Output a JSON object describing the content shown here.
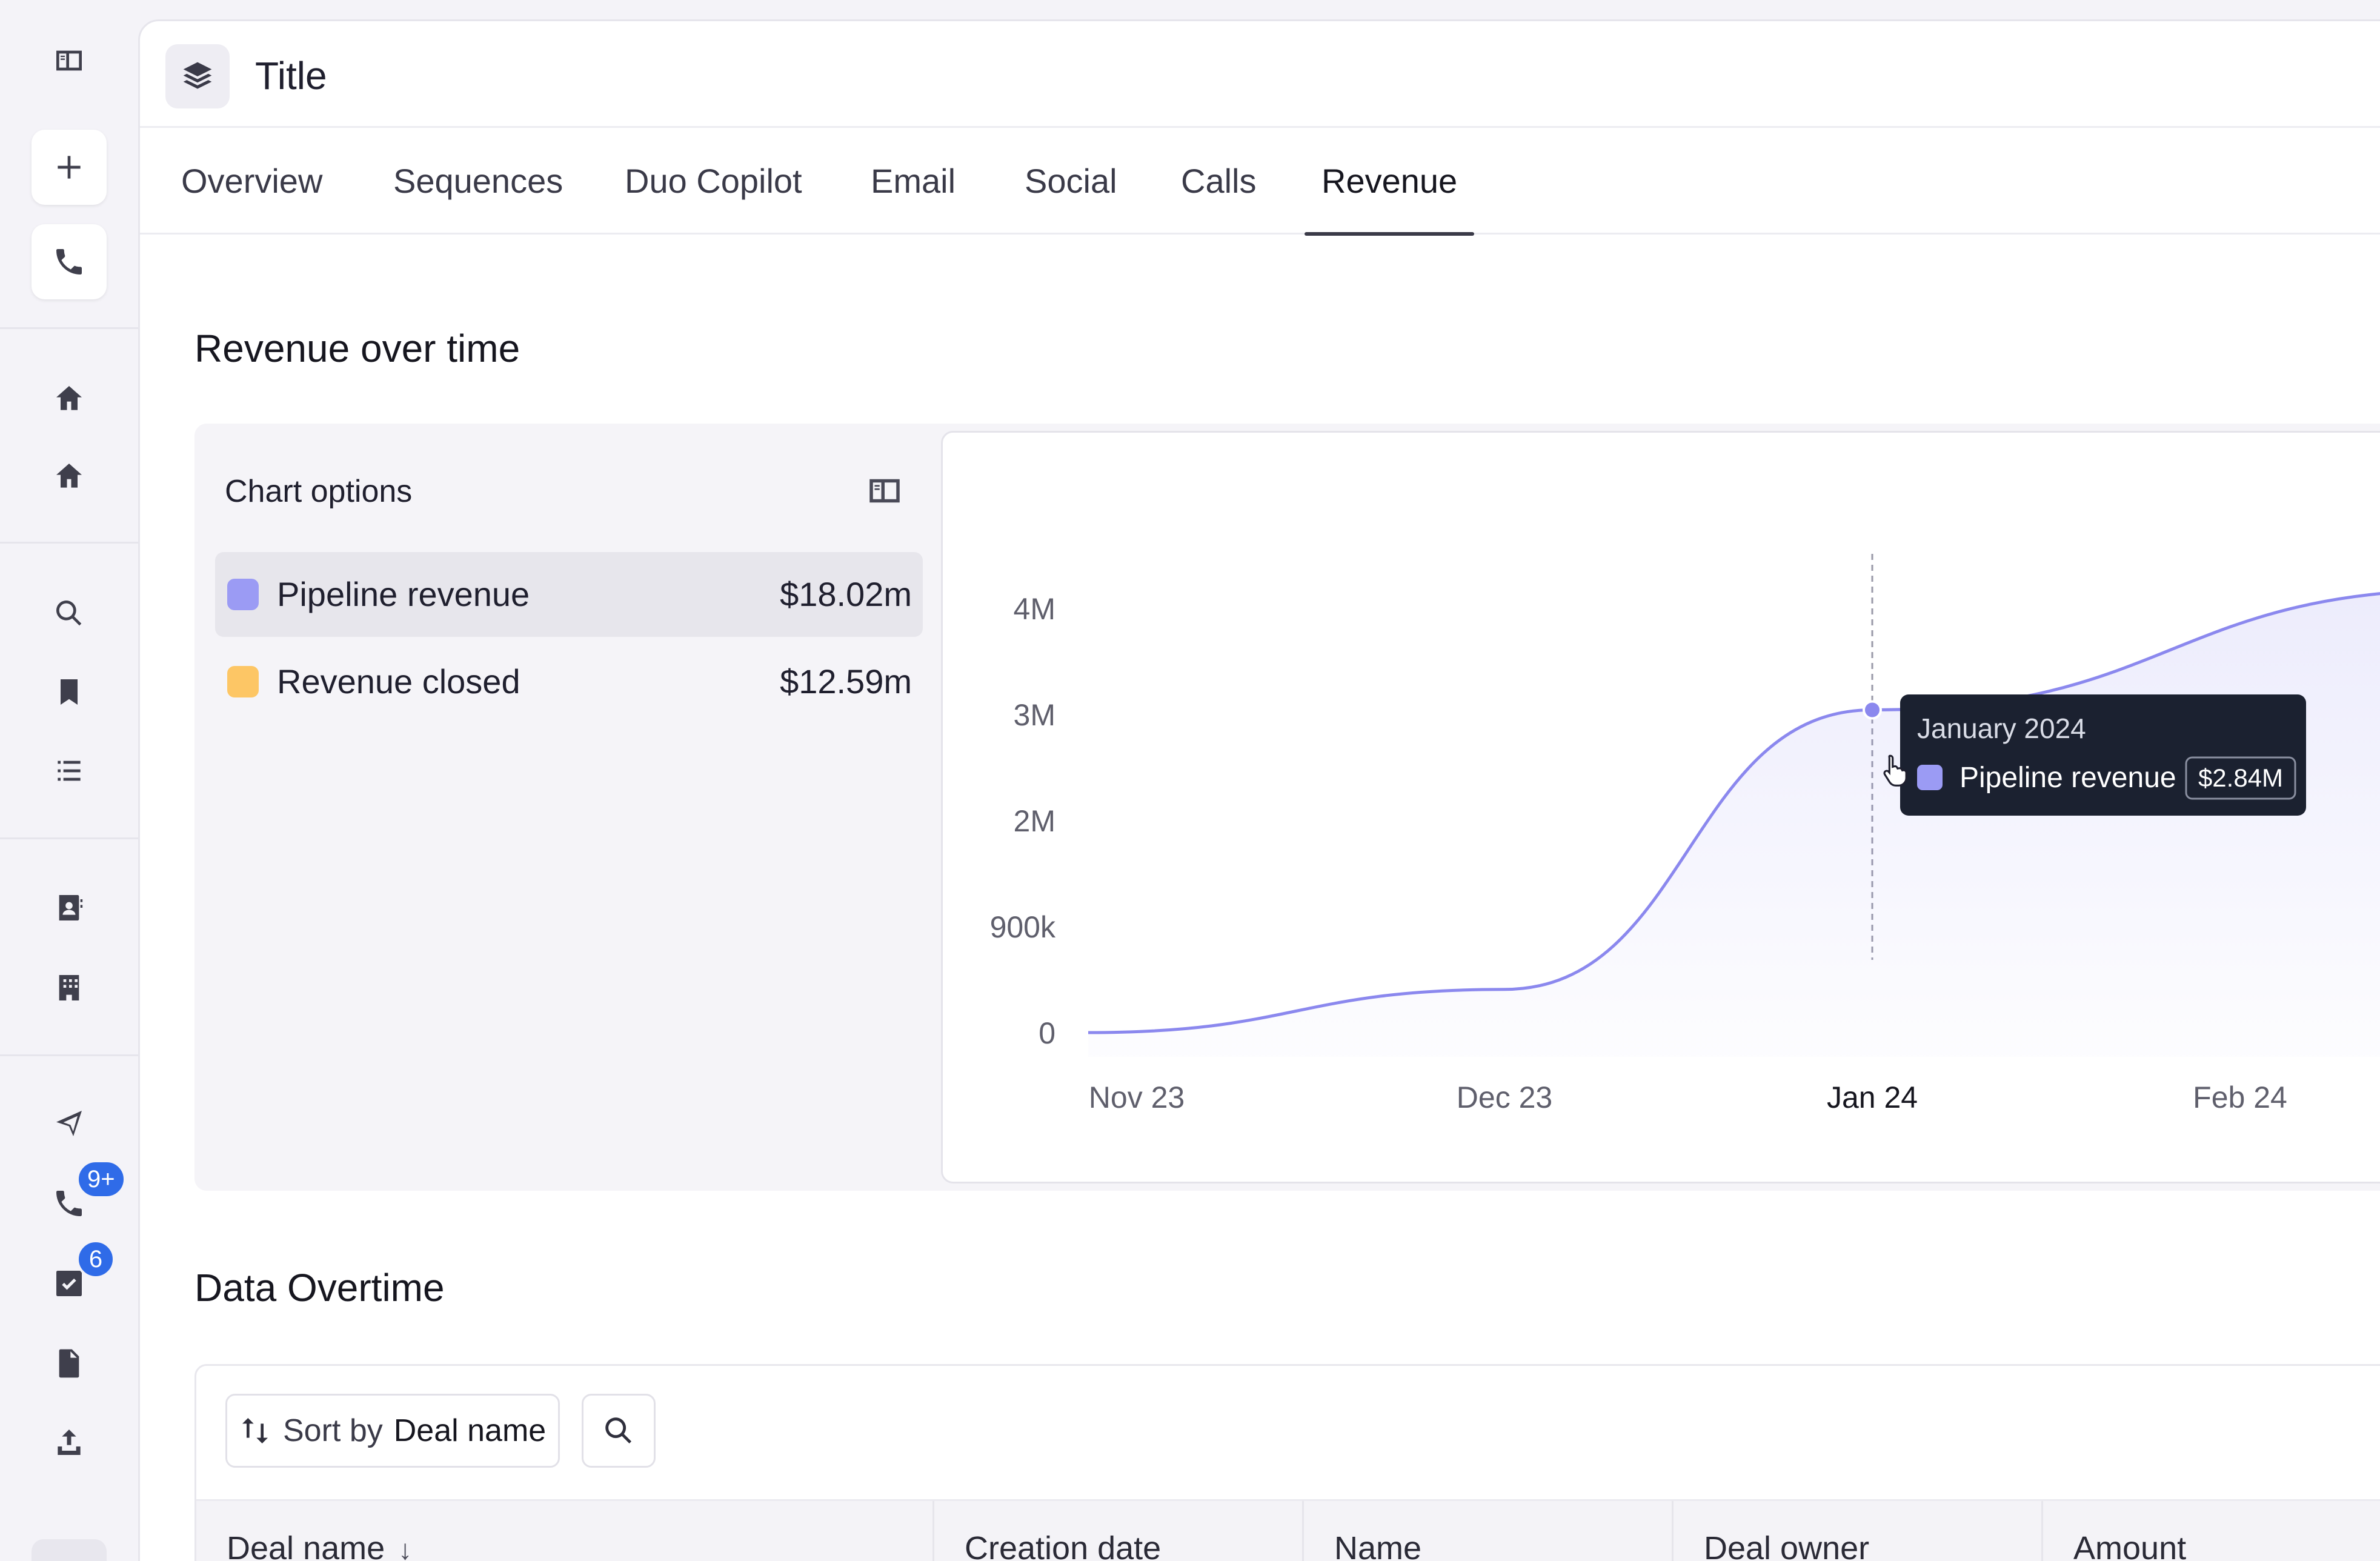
{
  "app": {
    "title": "Title"
  },
  "tabs": [
    {
      "label": "Overview",
      "active": false
    },
    {
      "label": "Sequences",
      "active": false
    },
    {
      "label": "Duo Copilot",
      "active": false
    },
    {
      "label": "Email",
      "active": false
    },
    {
      "label": "Social",
      "active": false
    },
    {
      "label": "Calls",
      "active": false
    },
    {
      "label": "Revenue",
      "active": true
    }
  ],
  "rail": {
    "badges": {
      "calls": "9+",
      "tasks": "6"
    },
    "icons": [
      "sidebar-toggle-icon",
      "plus-icon",
      "phone-icon",
      "home-icon",
      "home-icon",
      "search-icon",
      "bookmark-icon",
      "list-icon",
      "contacts-icon",
      "building-icon",
      "send-icon",
      "phone-icon",
      "checkbox-icon",
      "document-icon",
      "upload-icon"
    ]
  },
  "revenue_section": {
    "title": "Revenue over time",
    "options_title": "Chart options",
    "series": [
      {
        "name": "Pipeline revenue",
        "total": "$18.02m",
        "color": "#9b9bf4",
        "selected": true
      },
      {
        "name": "Revenue closed",
        "total": "$12.59m",
        "color": "#fdc665",
        "selected": false
      }
    ]
  },
  "tooltip": {
    "title": "January 2024",
    "series_name": "Pipeline revenue",
    "value": "$2.84M"
  },
  "chart_data": {
    "type": "area",
    "x": [
      "Nov 23",
      "Dec 23",
      "Jan 24",
      "Feb 24"
    ],
    "y_ticks": [
      "0",
      "900k",
      "2M",
      "3M",
      "4M"
    ],
    "highlighted_x": "Jan 24",
    "series": [
      {
        "name": "Pipeline revenue",
        "color": "#8b88ee",
        "points": [
          {
            "x": "Nov 23",
            "y": 0
          },
          {
            "x": "Dec 23",
            "y": 380000
          },
          {
            "x": "Jan 24",
            "y": 2840000
          },
          {
            "x": "Feb 24",
            "y": 3900000
          }
        ]
      }
    ],
    "ylim": [
      0,
      4000000
    ],
    "grid": false,
    "xlabel": "",
    "ylabel": ""
  },
  "data_section": {
    "title": "Data Overtime",
    "sort_prefix": "Sort by",
    "sort_field": "Deal name",
    "columns": [
      "Deal name",
      "Creation date",
      "Name",
      "Deal owner",
      "Amount"
    ],
    "sort_arrow": "↓"
  }
}
